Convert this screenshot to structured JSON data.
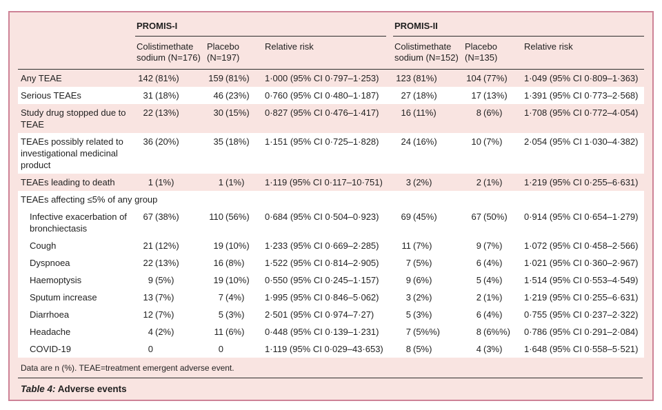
{
  "page": {
    "caption_label": "Table 4:",
    "caption_title": "Adverse events",
    "footnote": "Data are n (%). TEAE=treatment emergent adverse event."
  },
  "colors": {
    "panel_bg": "#f9e4e1",
    "panel_border": "#cd8296",
    "stripe_white": "#ffffff",
    "rule_dark": "#2b2b2b",
    "text": "#1f1f1f"
  },
  "table": {
    "column_groups": [
      {
        "label": "PROMIS-I",
        "subcolumns": [
          "Colistimethate sodium (N=176)",
          "Placebo (N=197)",
          "Relative risk"
        ]
      },
      {
        "label": "PROMIS-II",
        "subcolumns": [
          "Colistimethate sodium (N=152)",
          "Placebo (N=135)",
          "Relative risk"
        ]
      }
    ],
    "rows": [
      {
        "type": "data",
        "stripe": "pink",
        "indent": false,
        "label": "Any TEAE",
        "values": [
          "142 (81%)",
          "159 (81%)",
          "1·000 (95% CI 0·797–1·253)",
          "123 (81%)",
          "104 (77%)",
          "1·049 (95% CI 0·809–1·363)"
        ]
      },
      {
        "type": "data",
        "stripe": "white",
        "indent": false,
        "label": "Serious TEAEs",
        "values": [
          "31 (18%)",
          "46 (23%)",
          "0·760 (95% CI 0·480–1·187)",
          "27 (18%)",
          "17 (13%)",
          "1·391 (95% CI 0·773–2·568)"
        ]
      },
      {
        "type": "data",
        "stripe": "pink",
        "indent": false,
        "label": "Study drug stopped due to TEAE",
        "values": [
          "22 (13%)",
          "30 (15%)",
          "0·827 (95% CI 0·476–1·417)",
          "16 (11%)",
          "8 (6%)",
          "1·708 (95% CI 0·772–4·054)"
        ]
      },
      {
        "type": "data",
        "stripe": "white",
        "indent": false,
        "label": "TEAEs possibly related to investigational medicinal product",
        "values": [
          "36 (20%)",
          "35 (18%)",
          "1·151 (95% CI 0·725–1·828)",
          "24 (16%)",
          "10 (7%)",
          "2·054 (95% CI 1·030–4·382)"
        ]
      },
      {
        "type": "data",
        "stripe": "pink",
        "indent": false,
        "label": "TEAEs leading to death",
        "values": [
          "1 (1%)",
          "1 (1%)",
          "1·119 (95% CI 0·117–10·751)",
          "3 (2%)",
          "2 (1%)",
          "1·219 (95% CI 0·255–6·631)"
        ]
      },
      {
        "type": "section",
        "stripe": "white",
        "label": "TEAEs affecting ≤5% of any group"
      },
      {
        "type": "data",
        "stripe": "white",
        "indent": true,
        "label": "Infective exacerbation of bronchiectasis",
        "values": [
          "67 (38%)",
          "110 (56%)",
          "0·684 (95% CI 0·504–0·923)",
          "69 (45%)",
          "67 (50%)",
          "0·914 (95% CI 0·654–1·279)"
        ]
      },
      {
        "type": "data",
        "stripe": "white",
        "indent": true,
        "label": "Cough",
        "values": [
          "21 (12%)",
          "19 (10%)",
          "1·233 (95% CI 0·669–2·285)",
          "11 (7%)",
          "9 (7%)",
          "1·072 (95% CI 0·458–2·566)"
        ]
      },
      {
        "type": "data",
        "stripe": "white",
        "indent": true,
        "label": "Dyspnoea",
        "values": [
          "22 (13%)",
          "16 (8%)",
          "1·522 (95% CI 0·814–2·905)",
          "7 (5%)",
          "6 (4%)",
          "1·021 (95% CI 0·360–2·967)"
        ]
      },
      {
        "type": "data",
        "stripe": "white",
        "indent": true,
        "label": "Haemoptysis",
        "values": [
          "9 (5%)",
          "19 (10%)",
          "0·550 (95% CI 0·245–1·157)",
          "9 (6%)",
          "5 (4%)",
          "1·514 (95% CI 0·553–4·549)"
        ]
      },
      {
        "type": "data",
        "stripe": "white",
        "indent": true,
        "label": "Sputum increase",
        "values": [
          "13 (7%)",
          "7 (4%)",
          "1·995 (95% CI 0·846–5·062)",
          "3 (2%)",
          "2 (1%)",
          "1·219 (95% CI 0·255–6·631)"
        ]
      },
      {
        "type": "data",
        "stripe": "white",
        "indent": true,
        "label": "Diarrhoea",
        "values": [
          "12 (7%)",
          "5 (3%)",
          "2·501 (95% CI 0·974–7·27)",
          "5 (3%)",
          "6 (4%)",
          "0·755 (95% CI 0·237–2·322)"
        ]
      },
      {
        "type": "data",
        "stripe": "white",
        "indent": true,
        "label": "Headache",
        "values": [
          "4 (2%)",
          "11 (6%)",
          "0·448 (95% CI 0·139–1·231)",
          "7 (5%%)",
          "8 (6%%)",
          "0·786 (95% CI 0·291–2·084)"
        ]
      },
      {
        "type": "data",
        "stripe": "white",
        "indent": true,
        "label": "COVID-19",
        "values": [
          "0",
          "0",
          "1·119 (95% CI 0·029–43·653)",
          "8 (5%)",
          "4 (3%)",
          "1·648 (95% CI 0·558–5·521)"
        ]
      }
    ]
  }
}
